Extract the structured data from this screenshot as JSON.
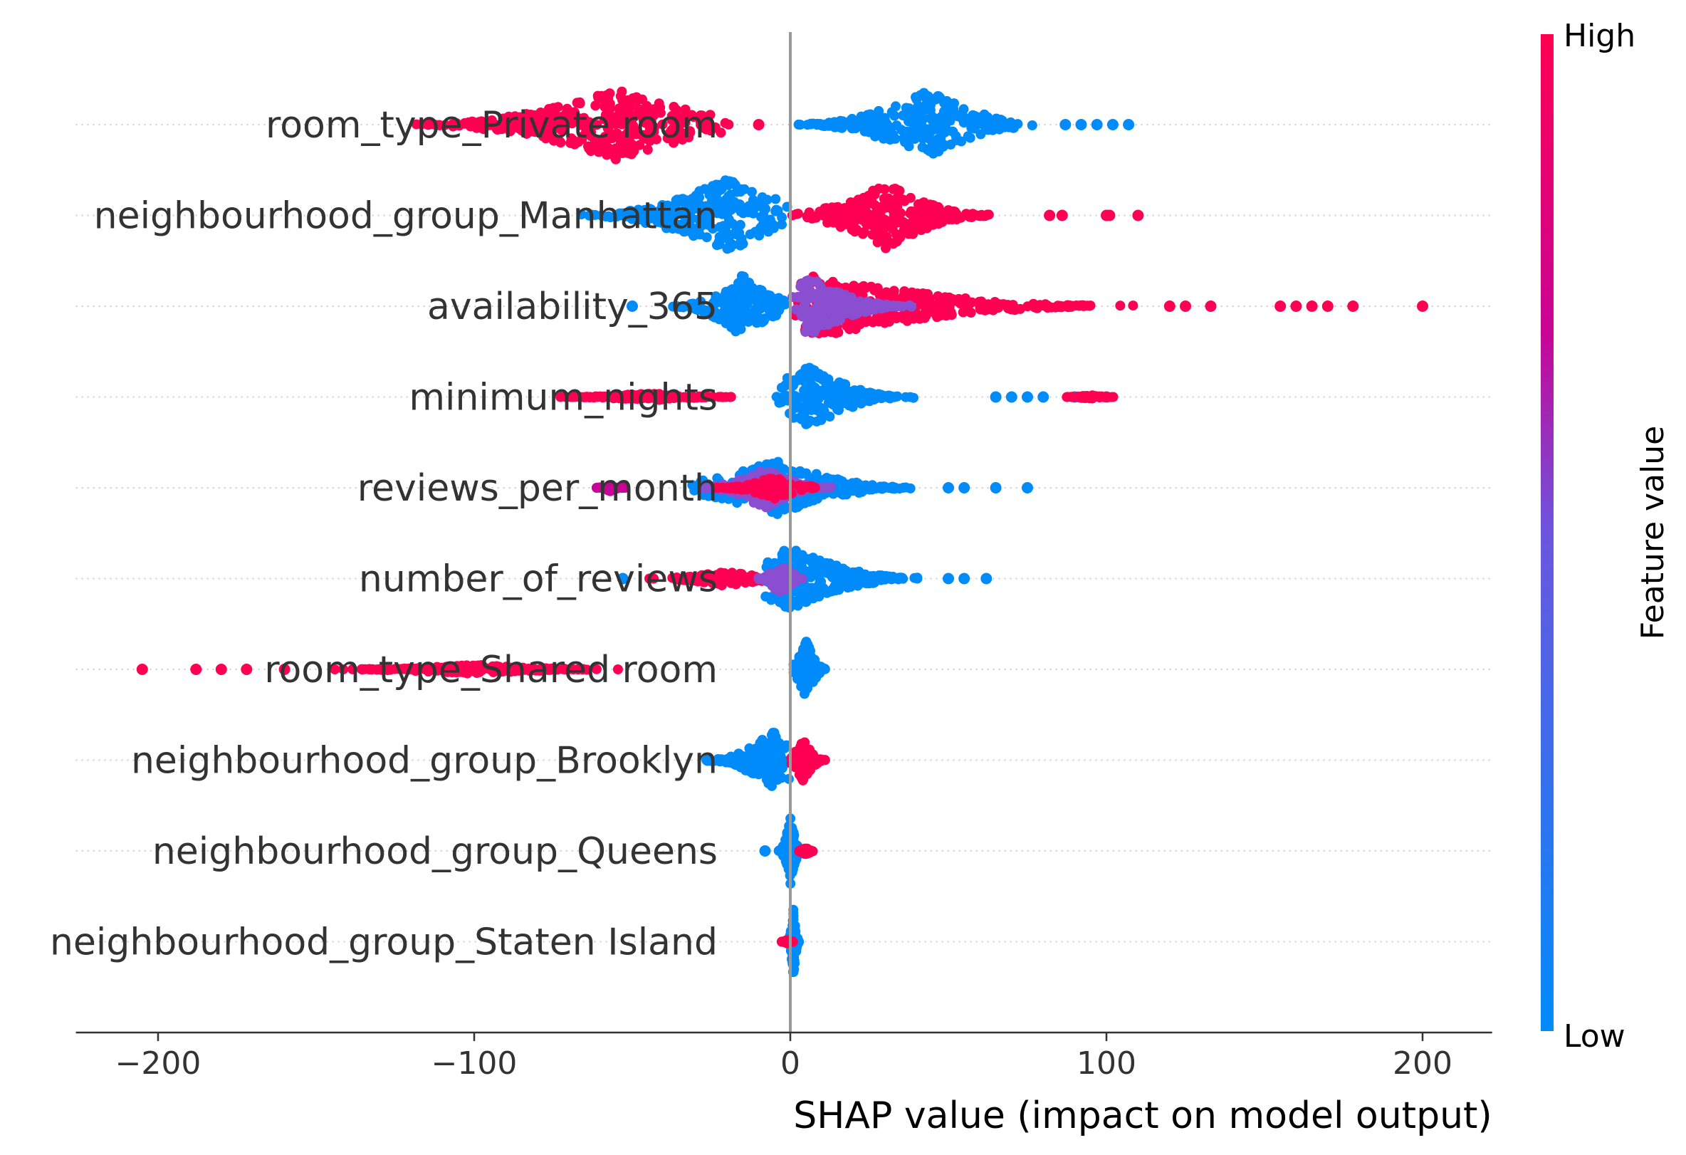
{
  "chart_data": {
    "type": "scatter",
    "subtype": "shap-beeswarm",
    "xlabel": "SHAP value (impact on model output)",
    "x_ticks": [
      -200,
      -100,
      0,
      100,
      200
    ],
    "x_tick_labels": [
      "−200",
      "−100",
      "0",
      "100",
      "200"
    ],
    "xlim": [
      -226,
      222
    ],
    "colorbar": {
      "label": "Feature value",
      "high_label": "High",
      "low_label": "Low",
      "high_color": "#ff0052",
      "mid_color": "#c80596",
      "low_color": "#008bfb"
    },
    "features": [
      {
        "name": "room_type_Private room",
        "groups": [
          {
            "min": -125,
            "max": -15,
            "peak": -55,
            "height": 0.9,
            "color": "#ff0052",
            "outliers": [
              -10
            ]
          },
          {
            "min": 0,
            "max": 80,
            "peak": 43,
            "height": 0.9,
            "color": "#008bfb",
            "outliers": [
              87,
              92,
              97,
              102,
              107
            ]
          }
        ]
      },
      {
        "name": "neighbourhood_group_Manhattan",
        "groups": [
          {
            "min": -70,
            "max": 0,
            "peak": -20,
            "height": 0.95,
            "color": "#008bfb",
            "outliers": []
          },
          {
            "min": 0,
            "max": 68,
            "peak": 30,
            "height": 0.85,
            "color": "#ff0052",
            "outliers": [
              82,
              86,
              100,
              101,
              110
            ]
          }
        ]
      },
      {
        "name": "availability_365",
        "groups": [
          {
            "min": -40,
            "max": 0,
            "peak": -15,
            "height": 0.8,
            "color": "#008bfb",
            "outliers": [
              -50
            ]
          },
          {
            "min": 0,
            "max": 110,
            "peak": 8,
            "height": 0.8,
            "color": "#ff0052",
            "outliers": [
              120,
              125,
              133,
              155,
              160,
              165,
              170,
              178,
              200
            ]
          },
          {
            "min": 0,
            "max": 40,
            "peak": 6,
            "height": 0.75,
            "color": "#8a4fd0",
            "outliers": []
          }
        ]
      },
      {
        "name": "minimum_nights",
        "groups": [
          {
            "min": -75,
            "max": -15,
            "peak": -45,
            "height": 0.1,
            "color": "#ff0052",
            "outliers": []
          },
          {
            "min": -5,
            "max": 40,
            "peak": 6,
            "height": 0.8,
            "color": "#008bfb",
            "outliers": [
              65,
              70,
              75,
              80,
              90,
              100
            ]
          },
          {
            "min": 85,
            "max": 105,
            "peak": 95,
            "height": 0.05,
            "color": "#ff0052",
            "outliers": []
          }
        ]
      },
      {
        "name": "reviews_per_month",
        "groups": [
          {
            "min": -62,
            "max": -52,
            "peak": -57,
            "height": 0.1,
            "color": "#c80596",
            "outliers": []
          },
          {
            "min": -35,
            "max": 45,
            "peak": -5,
            "height": 0.7,
            "color": "#008bfb",
            "outliers": [
              50,
              55,
              65,
              75
            ]
          },
          {
            "min": -30,
            "max": 15,
            "peak": -8,
            "height": 0.55,
            "color": "#8a4fd0",
            "outliers": []
          },
          {
            "min": -25,
            "max": 10,
            "peak": -5,
            "height": 0.3,
            "color": "#ff0052",
            "outliers": []
          }
        ]
      },
      {
        "name": "number_of_reviews",
        "groups": [
          {
            "min": -47,
            "max": -5,
            "peak": -20,
            "height": 0.2,
            "color": "#ff0052",
            "outliers": []
          },
          {
            "min": -10,
            "max": 45,
            "peak": 0,
            "height": 0.8,
            "color": "#008bfb",
            "outliers": [
              -53,
              50,
              55,
              62
            ]
          },
          {
            "min": -12,
            "max": 5,
            "peak": -3,
            "height": 0.45,
            "color": "#8a4fd0",
            "outliers": []
          }
        ]
      },
      {
        "name": "room_type_Shared room",
        "groups": [
          {
            "min": -145,
            "max": -50,
            "peak": -100,
            "height": 0.12,
            "color": "#ff0052",
            "outliers": [
              -205,
              -188,
              -180,
              -172,
              -160
            ]
          },
          {
            "min": 0,
            "max": 12,
            "peak": 5,
            "height": 0.8,
            "color": "#008bfb",
            "outliers": []
          }
        ]
      },
      {
        "name": "neighbourhood_group_Brooklyn",
        "groups": [
          {
            "min": -28,
            "max": 0,
            "peak": -5,
            "height": 0.8,
            "color": "#008bfb",
            "outliers": []
          },
          {
            "min": 0,
            "max": 12,
            "peak": 4,
            "height": 0.55,
            "color": "#ff0052",
            "outliers": []
          }
        ]
      },
      {
        "name": "neighbourhood_group_Queens",
        "groups": [
          {
            "min": -4,
            "max": 4,
            "peak": 0,
            "height": 0.9,
            "color": "#008bfb",
            "outliers": [
              -8
            ]
          },
          {
            "min": 2,
            "max": 9,
            "peak": 5,
            "height": 0.1,
            "color": "#ff0052",
            "outliers": []
          }
        ]
      },
      {
        "name": "neighbourhood_group_Staten Island",
        "groups": [
          {
            "min": -1,
            "max": 3,
            "peak": 1,
            "height": 0.9,
            "color": "#008bfb",
            "outliers": []
          },
          {
            "min": -3,
            "max": 1,
            "peak": -1,
            "height": 0.05,
            "color": "#ff0052",
            "outliers": []
          }
        ]
      }
    ]
  }
}
